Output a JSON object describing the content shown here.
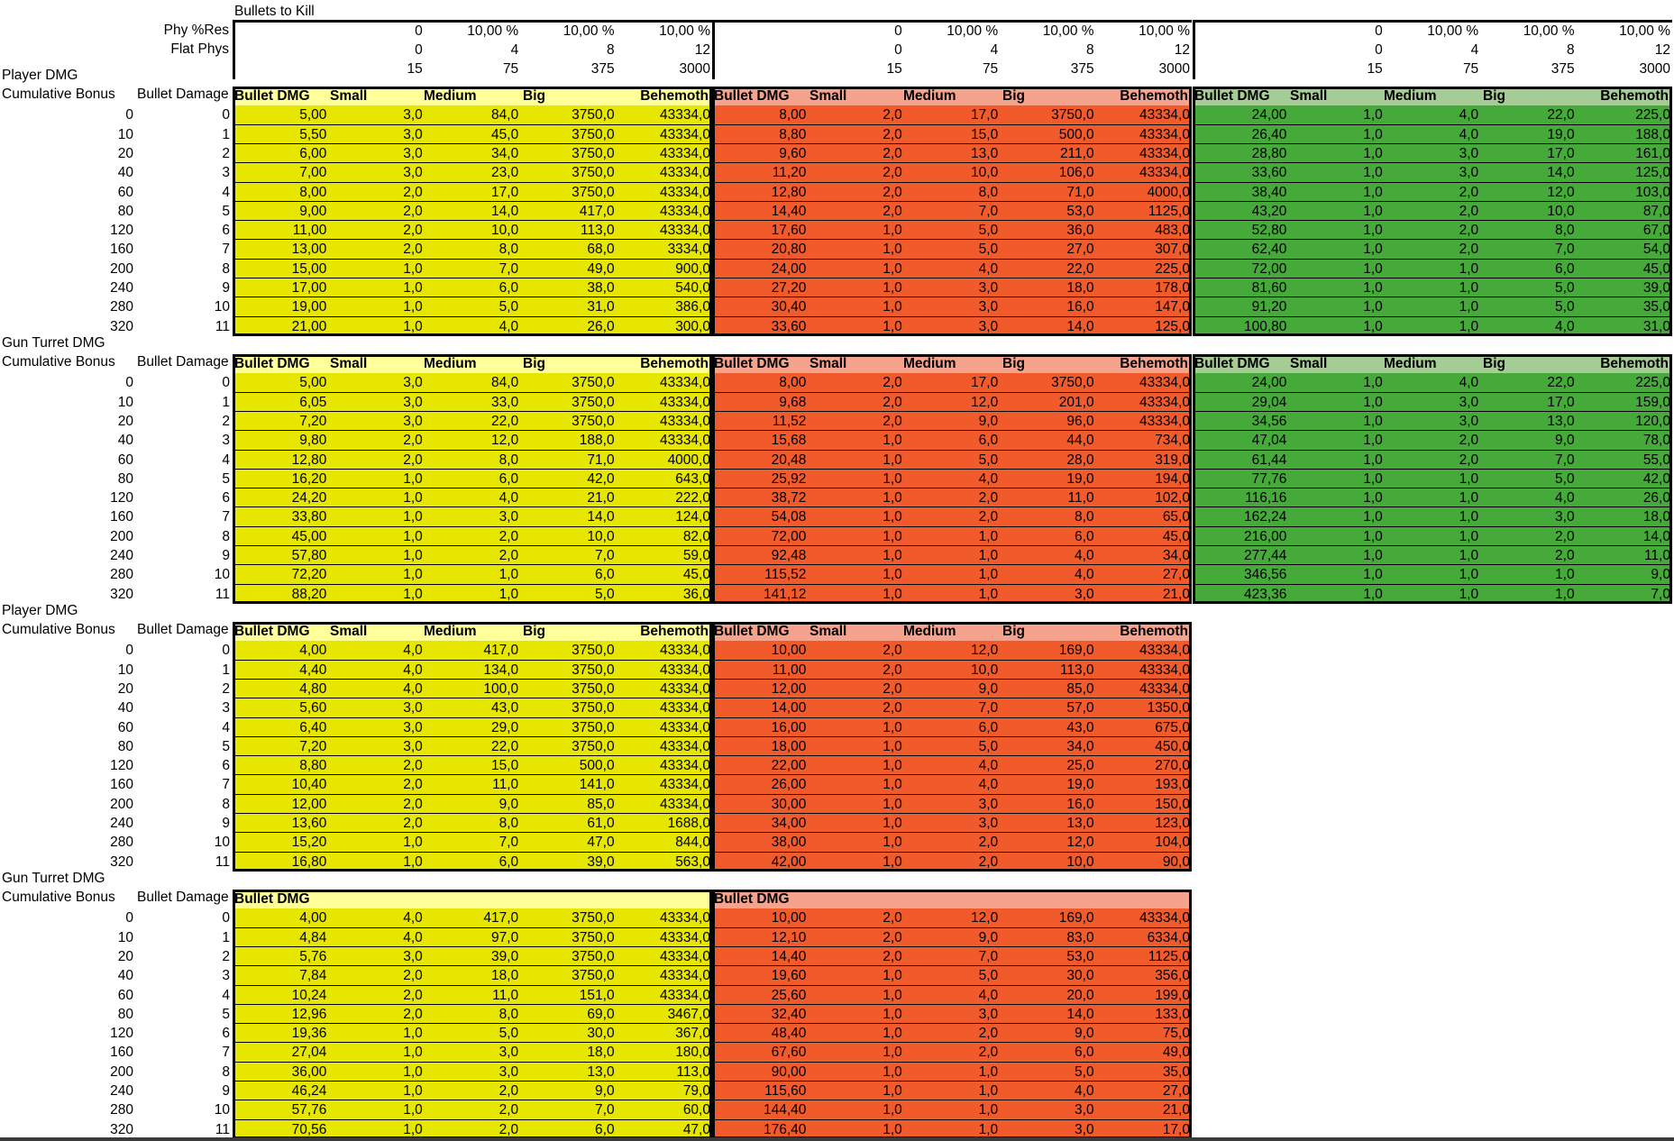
{
  "title": "Bullets to Kill",
  "res_labels": [
    "Phy %Res",
    "Flat Phys"
  ],
  "res_groups": [
    {
      "pct": [
        "0",
        "10,00 %",
        "10,00 %",
        "10,00 %"
      ],
      "flat": [
        "0",
        "4",
        "8",
        "12"
      ],
      "hp": [
        "15",
        "75",
        "375",
        "3000"
      ]
    },
    {
      "pct": [
        "0",
        "10,00 %",
        "10,00 %",
        "10,00 %"
      ],
      "flat": [
        "0",
        "4",
        "8",
        "12"
      ],
      "hp": [
        "15",
        "75",
        "375",
        "3000"
      ]
    },
    {
      "pct": [
        "0",
        "10,00 %",
        "10,00 %",
        "10,00 %"
      ],
      "flat": [
        "0",
        "4",
        "8",
        "12"
      ],
      "hp": [
        "15",
        "75",
        "375",
        "3000"
      ]
    }
  ],
  "row_header": {
    "cumulative": "Cumulative Bonus",
    "bullet": "Bullet Damage"
  },
  "column_header": {
    "bullet_dmg": "Bullet DMG",
    "small": "Small",
    "medium": "Medium",
    "big": "Big",
    "behemoth": "Behemoth"
  },
  "bonuses": [
    "0",
    "10",
    "20",
    "40",
    "60",
    "80",
    "120",
    "160",
    "200",
    "240",
    "280",
    "320"
  ],
  "levels": [
    "0",
    "1",
    "2",
    "3",
    "4",
    "5",
    "6",
    "7",
    "8",
    "9",
    "10",
    "11"
  ],
  "colors": {
    "yellow_header": "#ffff99",
    "yellow_cell": "#e6e600",
    "red_header": "#f6a38e",
    "red_cell": "#f15a2a",
    "green_header": "#a4cc94",
    "green_cell": "#46aa3a"
  },
  "sections": [
    {
      "title": "Player DMG",
      "show_headers": true,
      "blocks": [
        {
          "color": "yellow",
          "rows": [
            [
              "5,00",
              "3,0",
              "84,0",
              "3750,0",
              "43334,0"
            ],
            [
              "5,50",
              "3,0",
              "45,0",
              "3750,0",
              "43334,0"
            ],
            [
              "6,00",
              "3,0",
              "34,0",
              "3750,0",
              "43334,0"
            ],
            [
              "7,00",
              "3,0",
              "23,0",
              "3750,0",
              "43334,0"
            ],
            [
              "8,00",
              "2,0",
              "17,0",
              "3750,0",
              "43334,0"
            ],
            [
              "9,00",
              "2,0",
              "14,0",
              "417,0",
              "43334,0"
            ],
            [
              "11,00",
              "2,0",
              "10,0",
              "113,0",
              "43334,0"
            ],
            [
              "13,00",
              "2,0",
              "8,0",
              "68,0",
              "3334,0"
            ],
            [
              "15,00",
              "1,0",
              "7,0",
              "49,0",
              "900,0"
            ],
            [
              "17,00",
              "1,0",
              "6,0",
              "38,0",
              "540,0"
            ],
            [
              "19,00",
              "1,0",
              "5,0",
              "31,0",
              "386,0"
            ],
            [
              "21,00",
              "1,0",
              "4,0",
              "26,0",
              "300,0"
            ]
          ]
        },
        {
          "color": "red",
          "rows": [
            [
              "8,00",
              "2,0",
              "17,0",
              "3750,0",
              "43334,0"
            ],
            [
              "8,80",
              "2,0",
              "15,0",
              "500,0",
              "43334,0"
            ],
            [
              "9,60",
              "2,0",
              "13,0",
              "211,0",
              "43334,0"
            ],
            [
              "11,20",
              "2,0",
              "10,0",
              "106,0",
              "43334,0"
            ],
            [
              "12,80",
              "2,0",
              "8,0",
              "71,0",
              "4000,0"
            ],
            [
              "14,40",
              "2,0",
              "7,0",
              "53,0",
              "1125,0"
            ],
            [
              "17,60",
              "1,0",
              "5,0",
              "36,0",
              "483,0"
            ],
            [
              "20,80",
              "1,0",
              "5,0",
              "27,0",
              "307,0"
            ],
            [
              "24,00",
              "1,0",
              "4,0",
              "22,0",
              "225,0"
            ],
            [
              "27,20",
              "1,0",
              "3,0",
              "18,0",
              "178,0"
            ],
            [
              "30,40",
              "1,0",
              "3,0",
              "16,0",
              "147,0"
            ],
            [
              "33,60",
              "1,0",
              "3,0",
              "14,0",
              "125,0"
            ]
          ]
        },
        {
          "color": "green",
          "rows": [
            [
              "24,00",
              "1,0",
              "4,0",
              "22,0",
              "225,0"
            ],
            [
              "26,40",
              "1,0",
              "4,0",
              "19,0",
              "188,0"
            ],
            [
              "28,80",
              "1,0",
              "3,0",
              "17,0",
              "161,0"
            ],
            [
              "33,60",
              "1,0",
              "3,0",
              "14,0",
              "125,0"
            ],
            [
              "38,40",
              "1,0",
              "2,0",
              "12,0",
              "103,0"
            ],
            [
              "43,20",
              "1,0",
              "2,0",
              "10,0",
              "87,0"
            ],
            [
              "52,80",
              "1,0",
              "2,0",
              "8,0",
              "67,0"
            ],
            [
              "62,40",
              "1,0",
              "2,0",
              "7,0",
              "54,0"
            ],
            [
              "72,00",
              "1,0",
              "1,0",
              "6,0",
              "45,0"
            ],
            [
              "81,60",
              "1,0",
              "1,0",
              "5,0",
              "39,0"
            ],
            [
              "91,20",
              "1,0",
              "1,0",
              "5,0",
              "35,0"
            ],
            [
              "100,80",
              "1,0",
              "1,0",
              "4,0",
              "31,0"
            ]
          ]
        }
      ]
    },
    {
      "title": "Gun Turret DMG",
      "show_headers": true,
      "blocks": [
        {
          "color": "yellow",
          "rows": [
            [
              "5,00",
              "3,0",
              "84,0",
              "3750,0",
              "43334,0"
            ],
            [
              "6,05",
              "3,0",
              "33,0",
              "3750,0",
              "43334,0"
            ],
            [
              "7,20",
              "3,0",
              "22,0",
              "3750,0",
              "43334,0"
            ],
            [
              "9,80",
              "2,0",
              "12,0",
              "188,0",
              "43334,0"
            ],
            [
              "12,80",
              "2,0",
              "8,0",
              "71,0",
              "4000,0"
            ],
            [
              "16,20",
              "1,0",
              "6,0",
              "42,0",
              "643,0"
            ],
            [
              "24,20",
              "1,0",
              "4,0",
              "21,0",
              "222,0"
            ],
            [
              "33,80",
              "1,0",
              "3,0",
              "14,0",
              "124,0"
            ],
            [
              "45,00",
              "1,0",
              "2,0",
              "10,0",
              "82,0"
            ],
            [
              "57,80",
              "1,0",
              "2,0",
              "7,0",
              "59,0"
            ],
            [
              "72,20",
              "1,0",
              "1,0",
              "6,0",
              "45,0"
            ],
            [
              "88,20",
              "1,0",
              "1,0",
              "5,0",
              "36,0"
            ]
          ]
        },
        {
          "color": "red",
          "rows": [
            [
              "8,00",
              "2,0",
              "17,0",
              "3750,0",
              "43334,0"
            ],
            [
              "9,68",
              "2,0",
              "12,0",
              "201,0",
              "43334,0"
            ],
            [
              "11,52",
              "2,0",
              "9,0",
              "96,0",
              "43334,0"
            ],
            [
              "15,68",
              "1,0",
              "6,0",
              "44,0",
              "734,0"
            ],
            [
              "20,48",
              "1,0",
              "5,0",
              "28,0",
              "319,0"
            ],
            [
              "25,92",
              "1,0",
              "4,0",
              "19,0",
              "194,0"
            ],
            [
              "38,72",
              "1,0",
              "2,0",
              "11,0",
              "102,0"
            ],
            [
              "54,08",
              "1,0",
              "2,0",
              "8,0",
              "65,0"
            ],
            [
              "72,00",
              "1,0",
              "1,0",
              "6,0",
              "45,0"
            ],
            [
              "92,48",
              "1,0",
              "1,0",
              "4,0",
              "34,0"
            ],
            [
              "115,52",
              "1,0",
              "1,0",
              "4,0",
              "27,0"
            ],
            [
              "141,12",
              "1,0",
              "1,0",
              "3,0",
              "21,0"
            ]
          ]
        },
        {
          "color": "green",
          "rows": [
            [
              "24,00",
              "1,0",
              "4,0",
              "22,0",
              "225,0"
            ],
            [
              "29,04",
              "1,0",
              "3,0",
              "17,0",
              "159,0"
            ],
            [
              "34,56",
              "1,0",
              "3,0",
              "13,0",
              "120,0"
            ],
            [
              "47,04",
              "1,0",
              "2,0",
              "9,0",
              "78,0"
            ],
            [
              "61,44",
              "1,0",
              "2,0",
              "7,0",
              "55,0"
            ],
            [
              "77,76",
              "1,0",
              "1,0",
              "5,0",
              "42,0"
            ],
            [
              "116,16",
              "1,0",
              "1,0",
              "4,0",
              "26,0"
            ],
            [
              "162,24",
              "1,0",
              "1,0",
              "3,0",
              "18,0"
            ],
            [
              "216,00",
              "1,0",
              "1,0",
              "2,0",
              "14,0"
            ],
            [
              "277,44",
              "1,0",
              "1,0",
              "2,0",
              "11,0"
            ],
            [
              "346,56",
              "1,0",
              "1,0",
              "1,0",
              "9,0"
            ],
            [
              "423,36",
              "1,0",
              "1,0",
              "1,0",
              "7,0"
            ]
          ]
        }
      ]
    },
    {
      "title": "Player DMG",
      "show_headers": true,
      "blocks": [
        {
          "color": "yellow",
          "rows": [
            [
              "4,00",
              "4,0",
              "417,0",
              "3750,0",
              "43334,0"
            ],
            [
              "4,40",
              "4,0",
              "134,0",
              "3750,0",
              "43334,0"
            ],
            [
              "4,80",
              "4,0",
              "100,0",
              "3750,0",
              "43334,0"
            ],
            [
              "5,60",
              "3,0",
              "43,0",
              "3750,0",
              "43334,0"
            ],
            [
              "6,40",
              "3,0",
              "29,0",
              "3750,0",
              "43334,0"
            ],
            [
              "7,20",
              "3,0",
              "22,0",
              "3750,0",
              "43334,0"
            ],
            [
              "8,80",
              "2,0",
              "15,0",
              "500,0",
              "43334,0"
            ],
            [
              "10,40",
              "2,0",
              "11,0",
              "141,0",
              "43334,0"
            ],
            [
              "12,00",
              "2,0",
              "9,0",
              "85,0",
              "43334,0"
            ],
            [
              "13,60",
              "2,0",
              "8,0",
              "61,0",
              "1688,0"
            ],
            [
              "15,20",
              "1,0",
              "7,0",
              "47,0",
              "844,0"
            ],
            [
              "16,80",
              "1,0",
              "6,0",
              "39,0",
              "563,0"
            ]
          ]
        },
        {
          "color": "red",
          "rows": [
            [
              "10,00",
              "2,0",
              "12,0",
              "169,0",
              "43334,0"
            ],
            [
              "11,00",
              "2,0",
              "10,0",
              "113,0",
              "43334,0"
            ],
            [
              "12,00",
              "2,0",
              "9,0",
              "85,0",
              "43334,0"
            ],
            [
              "14,00",
              "2,0",
              "7,0",
              "57,0",
              "1350,0"
            ],
            [
              "16,00",
              "1,0",
              "6,0",
              "43,0",
              "675,0"
            ],
            [
              "18,00",
              "1,0",
              "5,0",
              "34,0",
              "450,0"
            ],
            [
              "22,00",
              "1,0",
              "4,0",
              "25,0",
              "270,0"
            ],
            [
              "26,00",
              "1,0",
              "4,0",
              "19,0",
              "193,0"
            ],
            [
              "30,00",
              "1,0",
              "3,0",
              "16,0",
              "150,0"
            ],
            [
              "34,00",
              "1,0",
              "3,0",
              "13,0",
              "123,0"
            ],
            [
              "38,00",
              "1,0",
              "2,0",
              "12,0",
              "104,0"
            ],
            [
              "42,00",
              "1,0",
              "2,0",
              "10,0",
              "90,0"
            ]
          ]
        }
      ]
    },
    {
      "title": "Gun Turret DMG",
      "show_headers": false,
      "blocks": [
        {
          "color": "yellow",
          "rows": [
            [
              "4,00",
              "4,0",
              "417,0",
              "3750,0",
              "43334,0"
            ],
            [
              "4,84",
              "4,0",
              "97,0",
              "3750,0",
              "43334,0"
            ],
            [
              "5,76",
              "3,0",
              "39,0",
              "3750,0",
              "43334,0"
            ],
            [
              "7,84",
              "2,0",
              "18,0",
              "3750,0",
              "43334,0"
            ],
            [
              "10,24",
              "2,0",
              "11,0",
              "151,0",
              "43334,0"
            ],
            [
              "12,96",
              "2,0",
              "8,0",
              "69,0",
              "3467,0"
            ],
            [
              "19,36",
              "1,0",
              "5,0",
              "30,0",
              "367,0"
            ],
            [
              "27,04",
              "1,0",
              "3,0",
              "18,0",
              "180,0"
            ],
            [
              "36,00",
              "1,0",
              "3,0",
              "13,0",
              "113,0"
            ],
            [
              "46,24",
              "1,0",
              "2,0",
              "9,0",
              "79,0"
            ],
            [
              "57,76",
              "1,0",
              "2,0",
              "7,0",
              "60,0"
            ],
            [
              "70,56",
              "1,0",
              "2,0",
              "6,0",
              "47,0"
            ]
          ]
        },
        {
          "color": "red",
          "rows": [
            [
              "10,00",
              "2,0",
              "12,0",
              "169,0",
              "43334,0"
            ],
            [
              "12,10",
              "2,0",
              "9,0",
              "83,0",
              "6334,0"
            ],
            [
              "14,40",
              "2,0",
              "7,0",
              "53,0",
              "1125,0"
            ],
            [
              "19,60",
              "1,0",
              "5,0",
              "30,0",
              "356,0"
            ],
            [
              "25,60",
              "1,0",
              "4,0",
              "20,0",
              "199,0"
            ],
            [
              "32,40",
              "1,0",
              "3,0",
              "14,0",
              "133,0"
            ],
            [
              "48,40",
              "1,0",
              "2,0",
              "9,0",
              "75,0"
            ],
            [
              "67,60",
              "1,0",
              "2,0",
              "6,0",
              "49,0"
            ],
            [
              "90,00",
              "1,0",
              "1,0",
              "5,0",
              "35,0"
            ],
            [
              "115,60",
              "1,0",
              "1,0",
              "4,0",
              "27,0"
            ],
            [
              "144,40",
              "1,0",
              "1,0",
              "3,0",
              "21,0"
            ],
            [
              "176,40",
              "1,0",
              "1,0",
              "3,0",
              "17,0"
            ]
          ]
        }
      ]
    }
  ]
}
